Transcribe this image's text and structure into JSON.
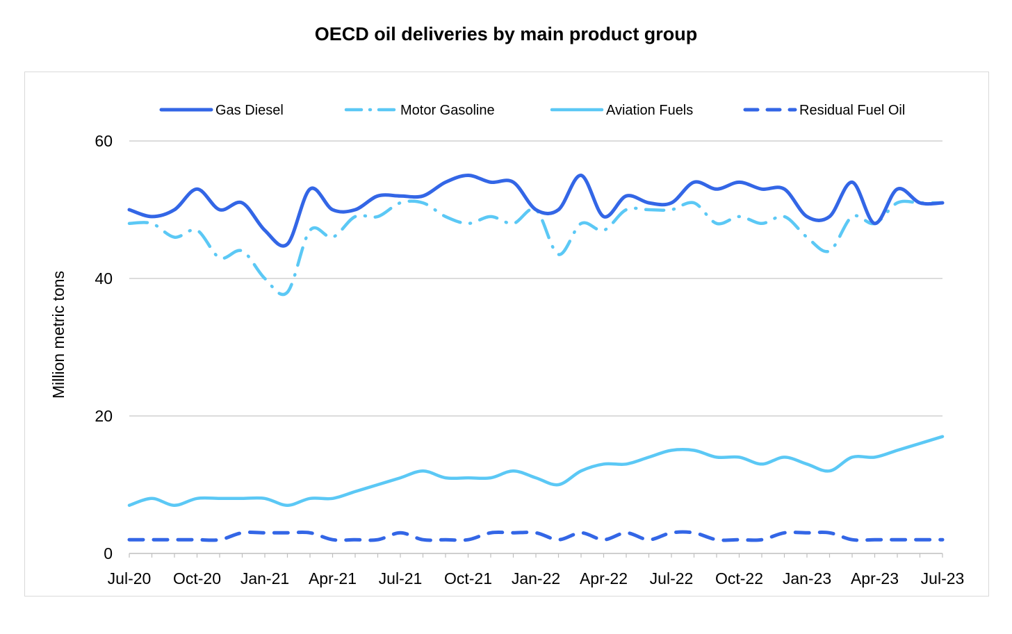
{
  "chart_data": {
    "type": "line",
    "title": "OECD oil deliveries by main product group",
    "ylabel": "Million metric tons",
    "xlabel": "",
    "ylim": [
      0,
      60
    ],
    "yticks": [
      0,
      20,
      40,
      60
    ],
    "grid": true,
    "legend_position": "top",
    "x": [
      "Jul-20",
      "Aug-20",
      "Sep-20",
      "Oct-20",
      "Nov-20",
      "Dec-20",
      "Jan-21",
      "Feb-21",
      "Mar-21",
      "Apr-21",
      "May-21",
      "Jun-21",
      "Jul-21",
      "Aug-21",
      "Sep-21",
      "Oct-21",
      "Nov-21",
      "Dec-21",
      "Jan-22",
      "Feb-22",
      "Mar-22",
      "Apr-22",
      "May-22",
      "Jun-22",
      "Jul-22",
      "Aug-22",
      "Sep-22",
      "Oct-22",
      "Nov-22",
      "Dec-22",
      "Jan-23",
      "Feb-23",
      "Mar-23",
      "Apr-23",
      "May-23",
      "Jun-23",
      "Jul-23"
    ],
    "x_tick_labels": [
      "Jul-20",
      "Oct-20",
      "Jan-21",
      "Apr-21",
      "Jul-21",
      "Oct-21",
      "Jan-22",
      "Apr-22",
      "Jul-22",
      "Oct-22",
      "Jan-23",
      "Apr-23",
      "Jul-23"
    ],
    "series": [
      {
        "name": "Gas Diesel",
        "style": "solid-thick",
        "color": "#3366e6",
        "values": [
          50,
          49,
          50,
          53,
          50,
          51,
          47,
          45,
          53,
          50,
          50,
          52,
          52,
          52,
          54,
          55,
          54,
          54,
          50,
          50,
          55,
          49,
          52,
          51,
          51,
          54,
          53,
          54,
          53,
          53,
          49,
          49,
          54,
          48,
          53,
          51,
          51
        ]
      },
      {
        "name": "Motor Gasoline",
        "style": "dash-dot",
        "color": "#5bc8f5",
        "values": [
          48,
          48,
          46,
          47,
          43,
          44,
          40,
          38,
          47,
          46,
          49,
          49,
          51,
          51,
          49,
          48,
          49,
          48,
          50,
          43.5,
          48,
          47,
          50,
          50,
          50,
          51,
          48,
          49,
          48,
          49,
          46,
          44,
          49,
          48,
          51,
          51,
          51
        ]
      },
      {
        "name": "Aviation Fuels",
        "style": "solid",
        "color": "#5bc8f5",
        "values": [
          7,
          8,
          7,
          8,
          8,
          8,
          8,
          7,
          8,
          8,
          9,
          10,
          11,
          12,
          11,
          11,
          11,
          12,
          11,
          10,
          12,
          13,
          13,
          14,
          15,
          15,
          14,
          14,
          13,
          14,
          13,
          12,
          14,
          14,
          15,
          16,
          17
        ]
      },
      {
        "name": "Residual Fuel Oil",
        "style": "dashed",
        "color": "#3366e6",
        "values": [
          2,
          2,
          2,
          2,
          2,
          3,
          3,
          3,
          3,
          2,
          2,
          2,
          3,
          2,
          2,
          2,
          3,
          3,
          3,
          2,
          3,
          2,
          3,
          2,
          3,
          3,
          2,
          2,
          2,
          3,
          3,
          3,
          2,
          2,
          2,
          2,
          2
        ]
      }
    ]
  }
}
